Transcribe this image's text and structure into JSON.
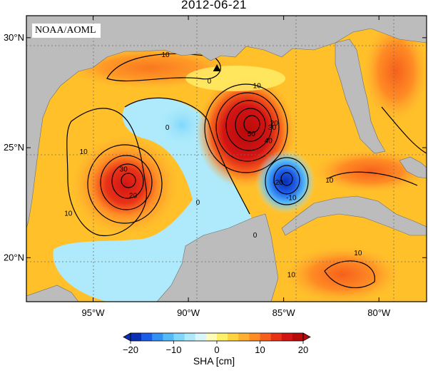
{
  "title": "2012-06-21",
  "credit": "NOAA/AOML",
  "colors": {
    "land": "#bcbcbc",
    "ocean_base": "#ffc02a",
    "grid": "#6f6f6f"
  },
  "map": {
    "lon_range": [
      -98.5,
      -77.5
    ],
    "lat_range": [
      18,
      31
    ],
    "lon_ticks": [
      {
        "lon": -95,
        "label": "95°W"
      },
      {
        "lon": -90,
        "label": "90°W"
      },
      {
        "lon": -85,
        "label": "85°W"
      },
      {
        "lon": -80,
        "label": "80°W"
      }
    ],
    "lat_ticks": [
      {
        "lat": 30,
        "label": "30°N"
      },
      {
        "lat": 25,
        "label": "25°N"
      },
      {
        "lat": 20,
        "label": "20°N"
      }
    ],
    "marker": {
      "name": "station-triangle",
      "lon": -88.5,
      "lat": 28.6
    },
    "contour_labels": [
      {
        "text": "10",
        "lon": -91.2,
        "lat": 29.2
      },
      {
        "text": "10",
        "lon": -86.4,
        "lat": 27.8
      },
      {
        "text": "0",
        "lon": -88.9,
        "lat": 28.0
      },
      {
        "text": "10",
        "lon": -95.5,
        "lat": 24.8
      },
      {
        "text": "30",
        "lon": -93.4,
        "lat": 24.0
      },
      {
        "text": "20",
        "lon": -92.9,
        "lat": 22.8
      },
      {
        "text": "10",
        "lon": -96.3,
        "lat": 22.0
      },
      {
        "text": "0",
        "lon": -91.1,
        "lat": 25.9
      },
      {
        "text": "0",
        "lon": -89.5,
        "lat": 22.5
      },
      {
        "text": "50",
        "lon": -86.7,
        "lat": 25.6
      },
      {
        "text": "40",
        "lon": -85.8,
        "lat": 25.3
      },
      {
        "text": "30",
        "lon": -85.6,
        "lat": 25.9
      },
      {
        "text": "20",
        "lon": -85.5,
        "lat": 26.1
      },
      {
        "text": "-20",
        "lon": -85.3,
        "lat": 23.4
      },
      {
        "text": "-10",
        "lon": -84.6,
        "lat": 22.7
      },
      {
        "text": "10",
        "lon": -82.6,
        "lat": 23.5
      },
      {
        "text": "10",
        "lon": -81.1,
        "lat": 20.2
      },
      {
        "text": "10",
        "lon": -84.6,
        "lat": 19.2
      },
      {
        "text": "0",
        "lon": -86.5,
        "lat": 21.0
      }
    ]
  },
  "colorbar": {
    "label": "SHA [cm]",
    "min": -20,
    "max": 20,
    "ticks": [
      {
        "value": -20,
        "label": "−20"
      },
      {
        "value": -10,
        "label": "−10"
      },
      {
        "value": 0,
        "label": "0"
      },
      {
        "value": 10,
        "label": "10"
      },
      {
        "value": 20,
        "label": "20"
      }
    ],
    "colors": [
      "#0a2fb4",
      "#1c5de8",
      "#3391f5",
      "#55baf8",
      "#7fd7fb",
      "#aeeafb",
      "#d9f6fb",
      "#fffbb8",
      "#fff06a",
      "#ffd23f",
      "#ffb030",
      "#ff8c25",
      "#f6601c",
      "#e83218",
      "#d31414",
      "#b80a0a"
    ]
  }
}
